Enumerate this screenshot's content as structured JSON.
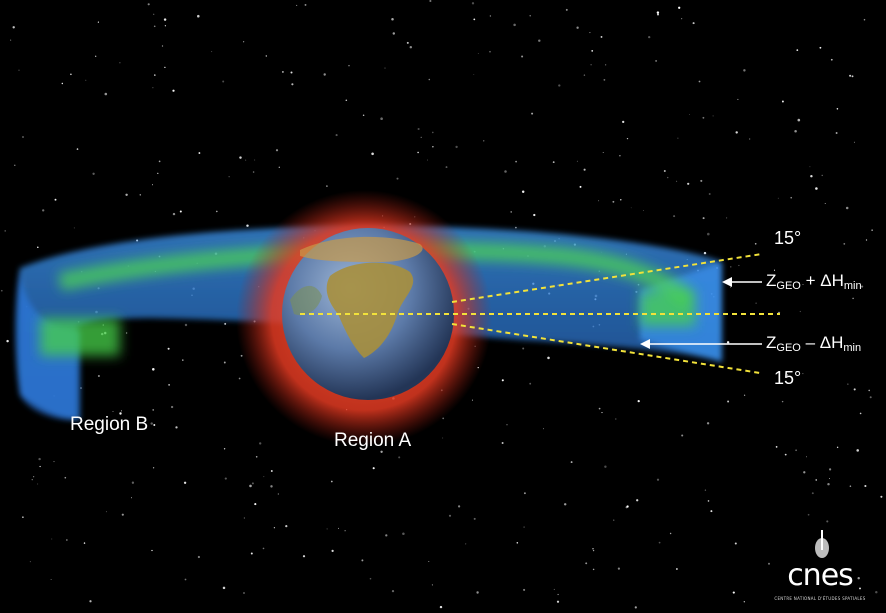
{
  "regions": {
    "region_b": "Region B",
    "region_a": "Region A"
  },
  "angles": {
    "upper": "15°",
    "lower": "15°"
  },
  "altitude_labels": {
    "upper": {
      "z": "Z",
      "sub1": "GEO",
      "mid": " + ΔH",
      "sub2": "min"
    },
    "lower": {
      "z": "Z",
      "sub1": "GEO",
      "mid": " – ΔH",
      "sub2": "min"
    }
  },
  "logo": {
    "word": "cnes",
    "subtitle": "CENTRE NATIONAL D'ÉTUDES SPATIALES"
  },
  "colors": {
    "background": "#000000",
    "region_a_glow": "#e8402a",
    "region_b_band": "#2f7fd6",
    "geo_ring": "#46d04a",
    "guide_lines": "#f2e23a",
    "arrows": "#ffffff"
  }
}
